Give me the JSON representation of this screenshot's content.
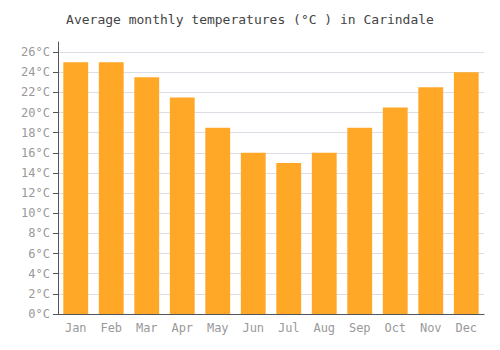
{
  "chart_data": {
    "type": "bar",
    "title": "Average monthly temperatures (°C ) in Carindale",
    "categories": [
      "Jan",
      "Feb",
      "Mar",
      "Apr",
      "May",
      "Jun",
      "Jul",
      "Aug",
      "Sep",
      "Oct",
      "Nov",
      "Dec"
    ],
    "values": [
      25.0,
      25.0,
      23.5,
      21.5,
      18.5,
      16.0,
      15.0,
      16.0,
      18.5,
      20.5,
      22.5,
      24.0
    ],
    "color": "#FFA726",
    "ylim": [
      0,
      27
    ],
    "yticks": [
      {
        "value": 0,
        "label": "0°C"
      },
      {
        "value": 2,
        "label": "2°C"
      },
      {
        "value": 4,
        "label": "4°C"
      },
      {
        "value": 6,
        "label": "6°C"
      },
      {
        "value": 8,
        "label": "8°C"
      },
      {
        "value": 10,
        "label": "10°C"
      },
      {
        "value": 12,
        "label": "12°C"
      },
      {
        "value": 14,
        "label": "14°C"
      },
      {
        "value": 16,
        "label": "16°C"
      },
      {
        "value": 18,
        "label": "18°C"
      },
      {
        "value": 20,
        "label": "20°C"
      },
      {
        "value": 22,
        "label": "22°C"
      },
      {
        "value": 24,
        "label": "24°C"
      },
      {
        "value": 26,
        "label": "26°C"
      }
    ],
    "grid": true
  }
}
